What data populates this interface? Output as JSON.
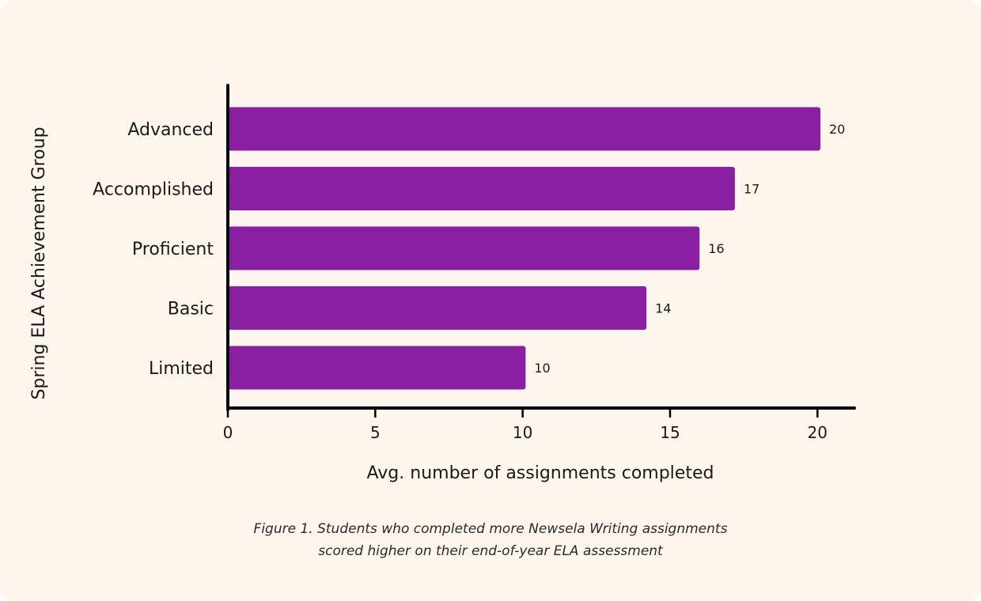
{
  "chart_data": {
    "type": "bar",
    "orientation": "horizontal",
    "categories": [
      "Advanced",
      "Accomplished",
      "Proficient",
      "Basic",
      "Limited"
    ],
    "values": [
      20.1,
      17.2,
      16.0,
      14.2,
      10.1
    ],
    "value_labels": [
      "20",
      "17",
      "16",
      "14",
      "10"
    ],
    "xlabel": "Avg. number of assignments completed",
    "ylabel": "Spring ELA Achievement Group",
    "xlim": [
      0,
      21.2
    ],
    "xticks": [
      0,
      5,
      10,
      15,
      20
    ],
    "grid": false,
    "bar_color": "#8b1fa4",
    "axis_color": "#000000"
  },
  "caption": {
    "line1": "Figure 1. Students who completed more Newsela Writing assignments",
    "line2": "scored higher on their end-of-year ELA assessment"
  },
  "colors": {
    "background": "#fef6ec",
    "bar": "#8b1fa4",
    "text": "#1a1a1a"
  }
}
